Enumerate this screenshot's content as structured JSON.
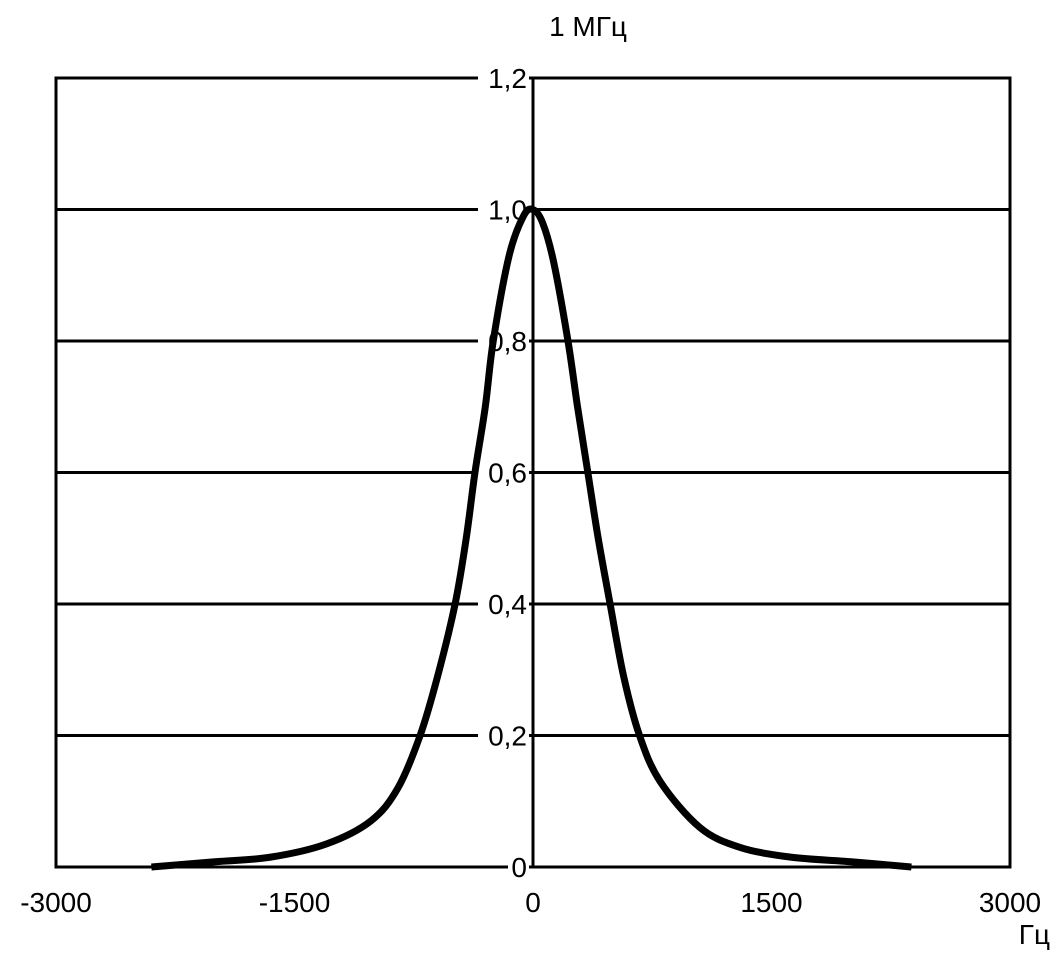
{
  "chart_data": {
    "type": "line",
    "title": "1 МГц",
    "xlabel": "Гц",
    "ylabel": "",
    "xlim": [
      -3000,
      3000
    ],
    "ylim": [
      0,
      1.2
    ],
    "grid": "horizontal",
    "x_ticks": [
      {
        "value": -3000,
        "label": "-3000"
      },
      {
        "value": -1500,
        "label": "-1500"
      },
      {
        "value": 0,
        "label": "0"
      },
      {
        "value": 1500,
        "label": "1500"
      },
      {
        "value": 3000,
        "label": "3000"
      }
    ],
    "y_ticks": [
      {
        "value": 0,
        "label": "0"
      },
      {
        "value": 0.2,
        "label": "0,2"
      },
      {
        "value": 0.4,
        "label": "0,4"
      },
      {
        "value": 0.6,
        "label": "0,6"
      },
      {
        "value": 0.8,
        "label": "0,8"
      },
      {
        "value": 1.0,
        "label": "1,0"
      },
      {
        "value": 1.2,
        "label": "1,2"
      }
    ],
    "series": [
      {
        "name": "response",
        "color": "#000000",
        "x": [
          -2400,
          -2000,
          -1650,
          -1300,
          -1020,
          -850,
          -710,
          -600,
          -490,
          -420,
          -365,
          -300,
          -250,
          -150,
          -60,
          0,
          60,
          130,
          220,
          280,
          345,
          410,
          485,
          570,
          670,
          800,
          1050,
          1300,
          1620,
          2000,
          2380
        ],
        "y": [
          0,
          0.008,
          0.015,
          0.035,
          0.07,
          0.12,
          0.2,
          0.29,
          0.4,
          0.5,
          0.6,
          0.7,
          0.8,
          0.93,
          0.99,
          1.0,
          0.98,
          0.92,
          0.8,
          0.7,
          0.6,
          0.5,
          0.4,
          0.29,
          0.2,
          0.13,
          0.06,
          0.03,
          0.015,
          0.008,
          0
        ]
      }
    ]
  }
}
